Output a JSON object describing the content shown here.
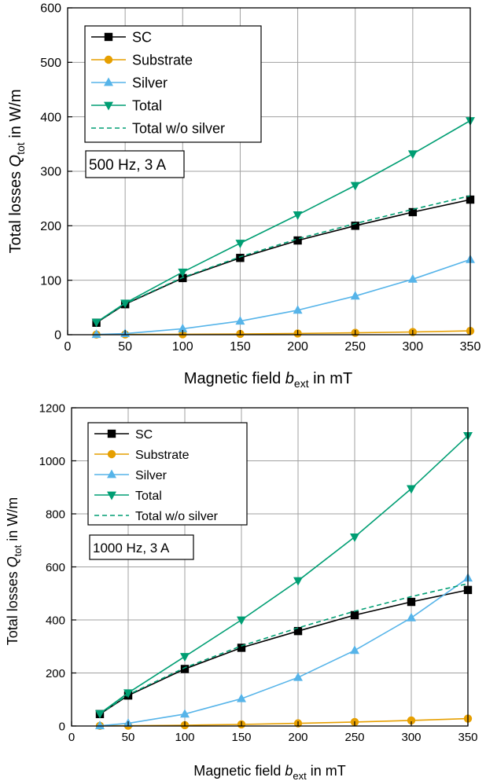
{
  "colors": {
    "sc": "#000000",
    "substrate": "#e69f00",
    "silver": "#56b4e9",
    "total": "#009e73",
    "total_wo_silver": "#009e73",
    "grid": "#a0a0a0"
  },
  "chart_data": [
    {
      "type": "line",
      "annotation": "500 Hz, 3 A",
      "xlabel": {
        "pre": "Magnetic field ",
        "var": "b",
        "sub": "ext",
        "post": " in mT"
      },
      "ylabel": {
        "pre": "Total losses ",
        "var": "Q",
        "sub": "tot",
        "post": "  in W/m"
      },
      "xlim": [
        0,
        350
      ],
      "ylim": [
        0,
        600
      ],
      "xticks": [
        0,
        50,
        100,
        150,
        200,
        250,
        300,
        350
      ],
      "yticks": [
        0,
        100,
        200,
        300,
        400,
        500,
        600
      ],
      "grid": true,
      "legend_position": "top-left",
      "series": [
        {
          "name": "SC",
          "key": "sc",
          "marker": "square",
          "dashed": false,
          "x": [
            25,
            50,
            100,
            150,
            200,
            250,
            300,
            350
          ],
          "y": [
            22,
            56,
            104,
            141,
            173,
            200,
            225,
            248
          ]
        },
        {
          "name": "Substrate",
          "key": "substrate",
          "marker": "circle",
          "dashed": false,
          "x": [
            25,
            50,
            100,
            150,
            200,
            250,
            300,
            350
          ],
          "y": [
            0.2,
            0.4,
            0.8,
            1.5,
            2.3,
            3.5,
            5,
            7
          ]
        },
        {
          "name": "Silver",
          "key": "silver",
          "marker": "triangle-up",
          "dashed": false,
          "x": [
            25,
            50,
            100,
            150,
            200,
            250,
            300,
            350
          ],
          "y": [
            0.5,
            2,
            11,
            25,
            45,
            71,
            102,
            138
          ]
        },
        {
          "name": "Total",
          "key": "total",
          "marker": "triangle-down",
          "dashed": false,
          "x": [
            25,
            50,
            100,
            150,
            200,
            250,
            300,
            350
          ],
          "y": [
            23,
            58,
            115,
            168,
            220,
            274,
            332,
            393
          ]
        },
        {
          "name": "Total w/o silver",
          "key": "total_wo_silver",
          "marker": "none",
          "dashed": true,
          "x": [
            25,
            50,
            100,
            150,
            200,
            250,
            300,
            350
          ],
          "y": [
            22.5,
            57,
            105,
            143,
            176,
            204,
            230,
            255
          ]
        }
      ]
    },
    {
      "type": "line",
      "annotation": "1000 Hz, 3 A",
      "xlabel": {
        "pre": "Magnetic field ",
        "var": "b",
        "sub": "ext",
        "post": " in mT"
      },
      "ylabel": {
        "pre": "Total losses ",
        "var": "Q",
        "sub": "tot",
        "post": "  in W/m"
      },
      "xlim": [
        0,
        350
      ],
      "ylim": [
        0,
        1200
      ],
      "xticks": [
        0,
        50,
        100,
        150,
        200,
        250,
        300,
        350
      ],
      "yticks": [
        0,
        200,
        400,
        600,
        800,
        1000,
        1200
      ],
      "grid": true,
      "legend_position": "top-left",
      "series": [
        {
          "name": "SC",
          "key": "sc",
          "marker": "square",
          "dashed": false,
          "x": [
            25,
            50,
            100,
            150,
            200,
            250,
            300,
            350
          ],
          "y": [
            45,
            115,
            215,
            295,
            358,
            418,
            468,
            513
          ]
        },
        {
          "name": "Substrate",
          "key": "substrate",
          "marker": "circle",
          "dashed": false,
          "x": [
            25,
            50,
            100,
            150,
            200,
            250,
            300,
            350
          ],
          "y": [
            0.5,
            1,
            3,
            6,
            10,
            15,
            21,
            28
          ]
        },
        {
          "name": "Silver",
          "key": "silver",
          "marker": "triangle-up",
          "dashed": false,
          "x": [
            25,
            50,
            100,
            150,
            200,
            250,
            300,
            350
          ],
          "y": [
            1,
            10,
            45,
            103,
            183,
            285,
            408,
            558
          ]
        },
        {
          "name": "Total",
          "key": "total",
          "marker": "triangle-down",
          "dashed": false,
          "x": [
            25,
            50,
            100,
            150,
            200,
            250,
            300,
            350
          ],
          "y": [
            47,
            125,
            262,
            400,
            548,
            713,
            895,
            1095
          ]
        },
        {
          "name": "Total w/o silver",
          "key": "total_wo_silver",
          "marker": "none",
          "dashed": true,
          "x": [
            25,
            50,
            100,
            150,
            200,
            250,
            300,
            350
          ],
          "y": [
            46,
            118,
            220,
            302,
            370,
            433,
            488,
            537
          ]
        }
      ]
    }
  ]
}
